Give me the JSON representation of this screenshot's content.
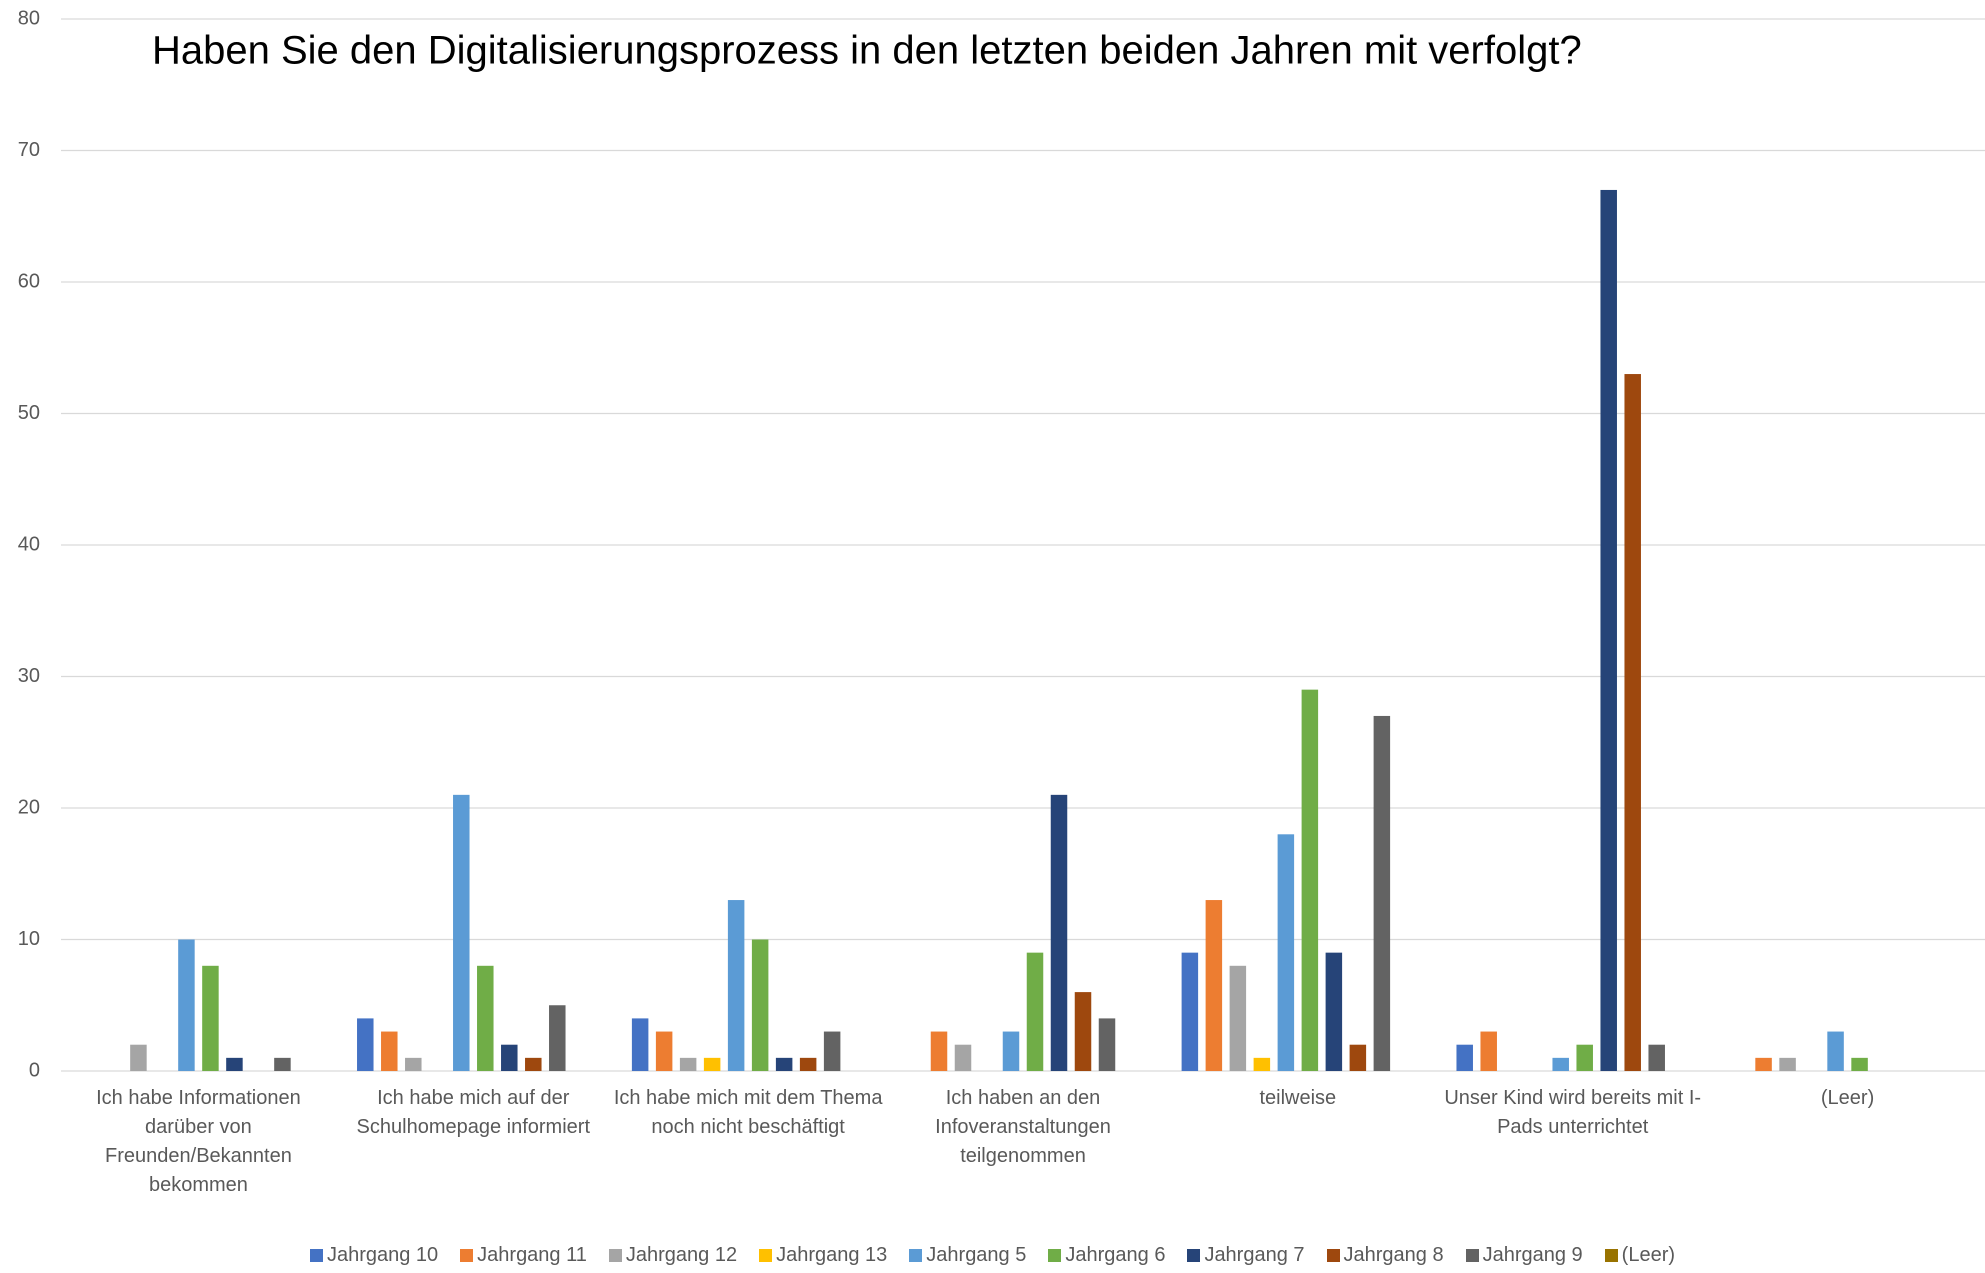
{
  "chart_data": {
    "type": "bar",
    "title": "Haben Sie den Digitalisierungsprozess in den letzten beiden Jahren mit verfolgt?",
    "categories": [
      "Ich habe Informationen darüber von Freunden/Bekannten bekommen",
      "Ich habe mich auf der Schulhomepage informiert",
      "Ich habe mich mit dem Thema noch nicht beschäftigt",
      "Ich haben an den Infoveranstaltungen teilgenommen",
      "teilweise",
      "Unser Kind wird bereits mit I-Pads unterrichtet",
      "(Leer)"
    ],
    "series": [
      {
        "name": "Jahrgang 10",
        "color": "#4472c4",
        "values": [
          null,
          4,
          4,
          null,
          9,
          2,
          null
        ]
      },
      {
        "name": "Jahrgang 11",
        "color": "#ed7d31",
        "values": [
          null,
          3,
          3,
          3,
          13,
          3,
          1
        ]
      },
      {
        "name": "Jahrgang 12",
        "color": "#a5a5a5",
        "values": [
          2,
          1,
          1,
          2,
          8,
          null,
          1
        ]
      },
      {
        "name": "Jahrgang 13",
        "color": "#ffc000",
        "values": [
          null,
          null,
          1,
          null,
          1,
          null,
          null
        ]
      },
      {
        "name": "Jahrgang 5",
        "color": "#5b9bd5",
        "values": [
          10,
          21,
          13,
          3,
          18,
          1,
          3
        ]
      },
      {
        "name": "Jahrgang 6",
        "color": "#70ad47",
        "values": [
          8,
          8,
          10,
          9,
          29,
          2,
          1
        ]
      },
      {
        "name": "Jahrgang 7",
        "color": "#264478",
        "values": [
          1,
          2,
          1,
          21,
          9,
          67,
          null
        ]
      },
      {
        "name": "Jahrgang 8",
        "color": "#9e480e",
        "values": [
          null,
          1,
          1,
          6,
          2,
          53,
          null
        ]
      },
      {
        "name": "Jahrgang 9",
        "color": "#636363",
        "values": [
          1,
          5,
          3,
          4,
          27,
          2,
          null
        ]
      },
      {
        "name": "(Leer)",
        "color": "#997300",
        "values": [
          null,
          null,
          null,
          null,
          null,
          null,
          null
        ]
      }
    ],
    "ylim": [
      0,
      80
    ],
    "yticks": [
      0,
      10,
      20,
      30,
      40,
      50,
      60,
      70,
      80
    ],
    "grid": true,
    "legend": "bottom"
  }
}
